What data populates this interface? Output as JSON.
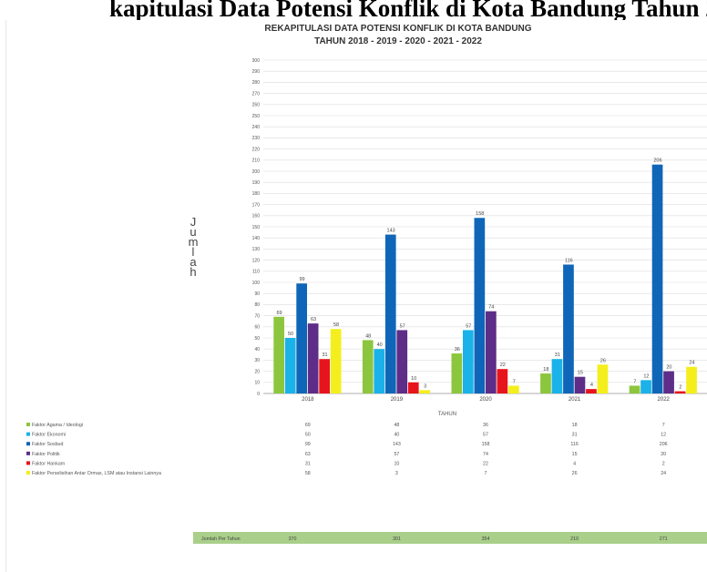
{
  "page_heading": "kapitulasi Data Potensi Konflik di Kota Bandung Tahun 2",
  "chart_data": {
    "type": "bar",
    "title": "REKAPITULASI DATA POTENSI KONFLIK DI KOTA BANDUNG",
    "subtitle": "TAHUN 2018 - 2019 - 2020 - 2021 - 2022",
    "ylabel": "JUMLAH",
    "ylabel_display": "Jumlah",
    "xlabel": "TAHUN",
    "categories": [
      "2018",
      "2019",
      "2020",
      "2021",
      "2022"
    ],
    "ylim": [
      0,
      300
    ],
    "ytick_step": 10,
    "grid": true,
    "series": [
      {
        "name": "Faktor Agama / Ideologi",
        "color": "#8cc63e",
        "values": [
          69,
          48,
          36,
          18,
          7
        ]
      },
      {
        "name": "Faktor Ekonomi",
        "color": "#1ab2e8",
        "values": [
          50,
          40,
          57,
          31,
          12
        ]
      },
      {
        "name": "Faktor Sosbud",
        "color": "#0f66b8",
        "values": [
          99,
          143,
          158,
          116,
          206
        ]
      },
      {
        "name": "Faktor Politik",
        "color": "#5d2d87",
        "values": [
          63,
          57,
          74,
          15,
          20
        ]
      },
      {
        "name": "Faktor Hankam",
        "color": "#e8141b",
        "values": [
          31,
          10,
          22,
          4,
          2
        ]
      },
      {
        "name": "Faktor Perselisihan Antar Ormas, LSM atau Instansi Lainnya",
        "color": "#f4ef1c",
        "values": [
          58,
          3,
          7,
          26,
          24
        ]
      }
    ],
    "totals": {
      "label": "Jumlah Per Tahun",
      "values": [
        370,
        301,
        354,
        210,
        271
      ]
    }
  }
}
